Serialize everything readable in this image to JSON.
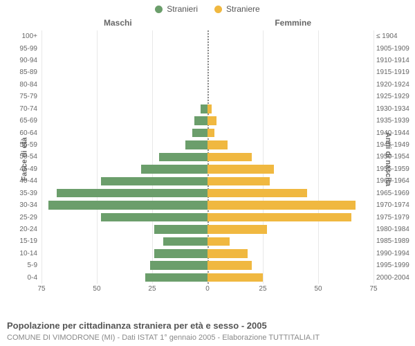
{
  "legend": {
    "male_label": "Stranieri",
    "female_label": "Straniere",
    "male_color": "#6b9e6b",
    "female_color": "#f0b840"
  },
  "columns": {
    "male_title": "Maschi",
    "female_title": "Femmine"
  },
  "y_labels": {
    "left": "Fasce di età",
    "right": "Anni di nascita"
  },
  "caption": "Popolazione per cittadinanza straniera per età e sesso - 2005",
  "subcaption": "COMUNE DI VIMODRONE (MI) - Dati ISTAT 1° gennaio 2005 - Elaborazione TUTTITALIA.IT",
  "chart": {
    "type": "population-pyramid",
    "x_max": 75,
    "x_ticks": [
      75,
      50,
      25,
      0,
      25,
      50,
      75
    ],
    "background_color": "#ffffff",
    "grid_color": "#e8e8e8",
    "center_line_color": "#888888",
    "label_fontsize": 10,
    "axis_label_fontsize": 11,
    "rows": [
      {
        "age": "100+",
        "birth": "≤ 1904",
        "m": 0,
        "f": 0
      },
      {
        "age": "95-99",
        "birth": "1905-1909",
        "m": 0,
        "f": 0
      },
      {
        "age": "90-94",
        "birth": "1910-1914",
        "m": 0,
        "f": 0
      },
      {
        "age": "85-89",
        "birth": "1915-1919",
        "m": 0,
        "f": 0
      },
      {
        "age": "80-84",
        "birth": "1920-1924",
        "m": 0,
        "f": 0
      },
      {
        "age": "75-79",
        "birth": "1925-1929",
        "m": 0,
        "f": 0
      },
      {
        "age": "70-74",
        "birth": "1930-1934",
        "m": 3,
        "f": 2
      },
      {
        "age": "65-69",
        "birth": "1935-1939",
        "m": 6,
        "f": 4
      },
      {
        "age": "60-64",
        "birth": "1940-1944",
        "m": 7,
        "f": 3
      },
      {
        "age": "55-59",
        "birth": "1945-1949",
        "m": 10,
        "f": 9
      },
      {
        "age": "50-54",
        "birth": "1950-1954",
        "m": 22,
        "f": 20
      },
      {
        "age": "45-49",
        "birth": "1955-1959",
        "m": 30,
        "f": 30
      },
      {
        "age": "40-44",
        "birth": "1960-1964",
        "m": 48,
        "f": 28
      },
      {
        "age": "35-39",
        "birth": "1965-1969",
        "m": 68,
        "f": 45
      },
      {
        "age": "30-34",
        "birth": "1970-1974",
        "m": 72,
        "f": 67
      },
      {
        "age": "25-29",
        "birth": "1975-1979",
        "m": 48,
        "f": 65
      },
      {
        "age": "20-24",
        "birth": "1980-1984",
        "m": 24,
        "f": 27
      },
      {
        "age": "15-19",
        "birth": "1985-1989",
        "m": 20,
        "f": 10
      },
      {
        "age": "10-14",
        "birth": "1990-1994",
        "m": 24,
        "f": 18
      },
      {
        "age": "5-9",
        "birth": "1995-1999",
        "m": 26,
        "f": 20
      },
      {
        "age": "0-4",
        "birth": "2000-2004",
        "m": 28,
        "f": 25
      }
    ]
  }
}
